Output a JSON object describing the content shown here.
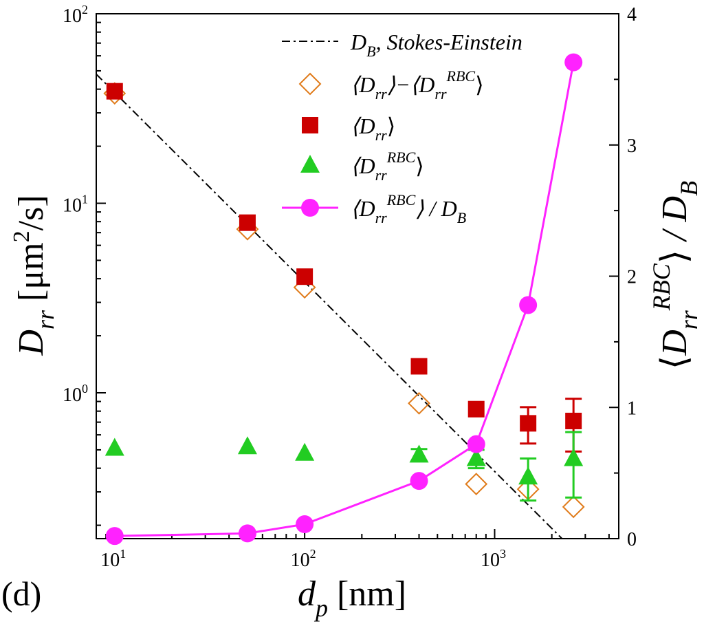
{
  "panel_label": "(d)",
  "colors": {
    "stokes_einstein": "#000000",
    "diff_total_minus_rbc": "#e07b1a",
    "total": "#cc0000",
    "rbc": "#22cc22",
    "ratio": "#ff22ff"
  },
  "chart_data": {
    "type": "scatter",
    "x_scale": "log",
    "y_left_scale": "log",
    "y_right_scale": "linear",
    "xlim": [
      8,
      4500
    ],
    "ylim_left": [
      0.17,
      100
    ],
    "ylim_right": [
      0,
      4
    ],
    "x_ticks": [
      10,
      100,
      1000
    ],
    "x_tick_labels": [
      {
        "base": "10",
        "exp": "1"
      },
      {
        "base": "10",
        "exp": "2"
      },
      {
        "base": "10",
        "exp": "3"
      }
    ],
    "y_left_ticks": [
      1,
      10,
      100
    ],
    "y_left_tick_labels": [
      {
        "base": "10",
        "exp": "0"
      },
      {
        "base": "10",
        "exp": "1"
      },
      {
        "base": "10",
        "exp": "2"
      }
    ],
    "y_right_ticks": [
      0,
      1,
      2,
      3,
      4
    ],
    "y_right_tick_labels": [
      "0",
      "1",
      "2",
      "3",
      "4"
    ],
    "xlabel": {
      "main": "d",
      "sub": "p",
      "unit": " [nm]"
    },
    "ylabel_left": {
      "main": "D",
      "sub": "rr",
      "unit_pre": " [μm",
      "unit_sup": "2",
      "unit_post": "/s]"
    },
    "ylabel_right": {
      "open": "⟨",
      "main": "D",
      "sub": "rr",
      "sup": "RBC",
      "close": "⟩",
      "rest": " / D",
      "rest_sub": "B"
    },
    "legend_position": "top-right",
    "series": [
      {
        "name": "D_B, Stokes-Einstein",
        "legend": {
          "main": "D",
          "sub": "B",
          "rest": ", Stokes-Einstein"
        },
        "axis": "left",
        "style": "dash-dot",
        "x": [
          8,
          2600
        ],
        "y": [
          48,
          0.148
        ]
      },
      {
        "name": "<D_rr>-<D_rr^RBC>",
        "legend": {
          "text": "⟨D",
          "sub": "rr",
          "mid": "⟩−⟨D",
          "sub2": "rr",
          "sup2": "RBC",
          "close": "⟩"
        },
        "axis": "left",
        "marker": "diamond-open",
        "x": [
          10,
          50,
          100,
          400,
          800,
          1500,
          2600
        ],
        "y": [
          38,
          7.3,
          3.6,
          0.88,
          0.33,
          0.31,
          0.25
        ]
      },
      {
        "name": "<D_rr>",
        "legend": {
          "text": "⟨D",
          "sub": "rr",
          "close": "⟩"
        },
        "axis": "left",
        "marker": "square",
        "x": [
          10,
          50,
          100,
          400,
          800,
          1500,
          2600
        ],
        "y": [
          39,
          7.9,
          4.1,
          1.38,
          0.82,
          0.69,
          0.71
        ],
        "err": [
          null,
          null,
          null,
          null,
          null,
          0.15,
          0.22
        ]
      },
      {
        "name": "<D_rr^RBC>",
        "legend": {
          "text": "⟨D",
          "sub": "rr",
          "sup": "RBC",
          "close": "⟩"
        },
        "axis": "left",
        "marker": "triangle",
        "x": [
          10,
          50,
          100,
          400,
          800,
          1500,
          2600
        ],
        "y": [
          0.51,
          0.52,
          0.48,
          0.47,
          0.45,
          0.36,
          0.45
        ],
        "err": [
          null,
          null,
          null,
          0.035,
          0.05,
          0.09,
          0.17
        ]
      },
      {
        "name": "<D_rr^RBC>/D_B",
        "legend": {
          "text": "⟨D",
          "sub": "rr",
          "sup": "RBC",
          "close": "⟩ / D",
          "sub2": "B"
        },
        "axis": "right",
        "marker": "circle",
        "line": true,
        "x": [
          10,
          50,
          100,
          400,
          800,
          1500,
          2600
        ],
        "y": [
          0.02,
          0.04,
          0.11,
          0.44,
          0.72,
          1.78,
          3.63
        ]
      }
    ]
  }
}
